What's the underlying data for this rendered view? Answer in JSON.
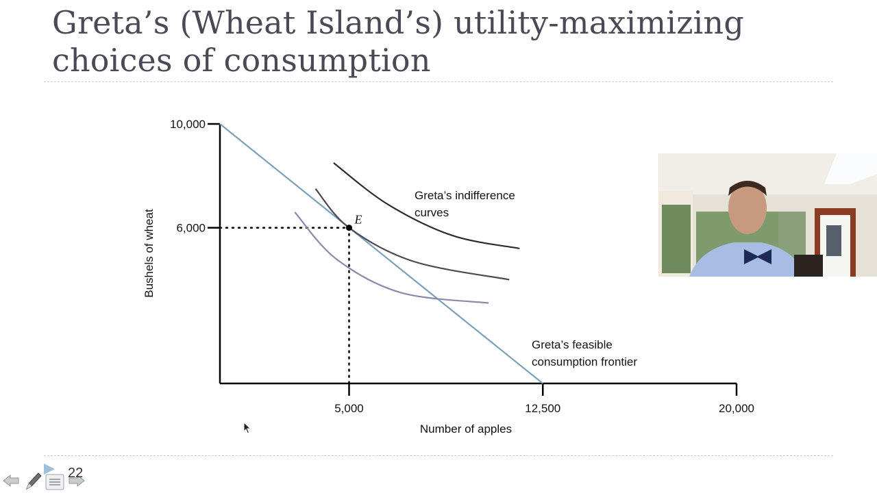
{
  "slide": {
    "title_line1": "Greta’s (Wheat Island’s) utility-maximizing",
    "title_line2": "choices of consumption",
    "slide_number": "22",
    "accent_color": "#bccfd8",
    "title_color": "#494a55"
  },
  "chart_data": {
    "type": "line",
    "title": "Greta’s (Wheat Island’s) utility-maximizing choices of consumption",
    "xlabel": "Number of apples",
    "ylabel": "Bushels of wheat",
    "x_ticks": [
      5000,
      12500,
      20000
    ],
    "x_tick_labels": [
      "5,000",
      "12,500",
      "20,000"
    ],
    "y_ticks": [
      6000,
      10000
    ],
    "y_tick_labels": [
      "6,000",
      "10,000"
    ],
    "xlim": [
      0,
      20000
    ],
    "ylim": [
      0,
      10000
    ],
    "grid": false,
    "series": [
      {
        "name": "Greta’s feasible consumption frontier",
        "color": "#7ba0b8",
        "points": [
          [
            0,
            10000
          ],
          [
            12500,
            0
          ]
        ]
      },
      {
        "name": "Indifference curve (high)",
        "color": "#2b2b2b",
        "points": [
          [
            4400,
            8500
          ],
          [
            6500,
            6900
          ],
          [
            9000,
            5700
          ],
          [
            11600,
            5200
          ]
        ]
      },
      {
        "name": "Indifference curve (tangent at E)",
        "color": "#4a4a52",
        "points": [
          [
            3700,
            7500
          ],
          [
            5000,
            6000
          ],
          [
            7500,
            4700
          ],
          [
            11200,
            4000
          ]
        ]
      },
      {
        "name": "Indifference curve (low)",
        "color": "#8a8aac",
        "points": [
          [
            2900,
            6600
          ],
          [
            4500,
            4800
          ],
          [
            7000,
            3500
          ],
          [
            10400,
            3100
          ]
        ]
      }
    ],
    "annotations": [
      {
        "text": "E",
        "x": 5000,
        "y": 6000,
        "type": "point"
      },
      {
        "text": "Greta’s indifference curves",
        "x": 7600,
        "y": 7300
      },
      {
        "text": "Greta’s feasible consumption frontier",
        "x": 12000,
        "y": 1500
      }
    ],
    "reference_lines": [
      {
        "type": "dotted",
        "from": [
          0,
          6000
        ],
        "to": [
          5000,
          6000
        ]
      },
      {
        "type": "dotted",
        "from": [
          5000,
          6000
        ],
        "to": [
          5000,
          0
        ]
      }
    ]
  },
  "labels": {
    "ic_line1": "Greta’s indifference",
    "ic_line2": "curves",
    "pcf_line1": "Greta’s feasible",
    "pcf_line2": "consumption frontier",
    "point": "E"
  },
  "nav": {
    "back": "previous-slide",
    "pen": "pen-tool",
    "menu": "slide-menu",
    "forward": "next-slide"
  }
}
